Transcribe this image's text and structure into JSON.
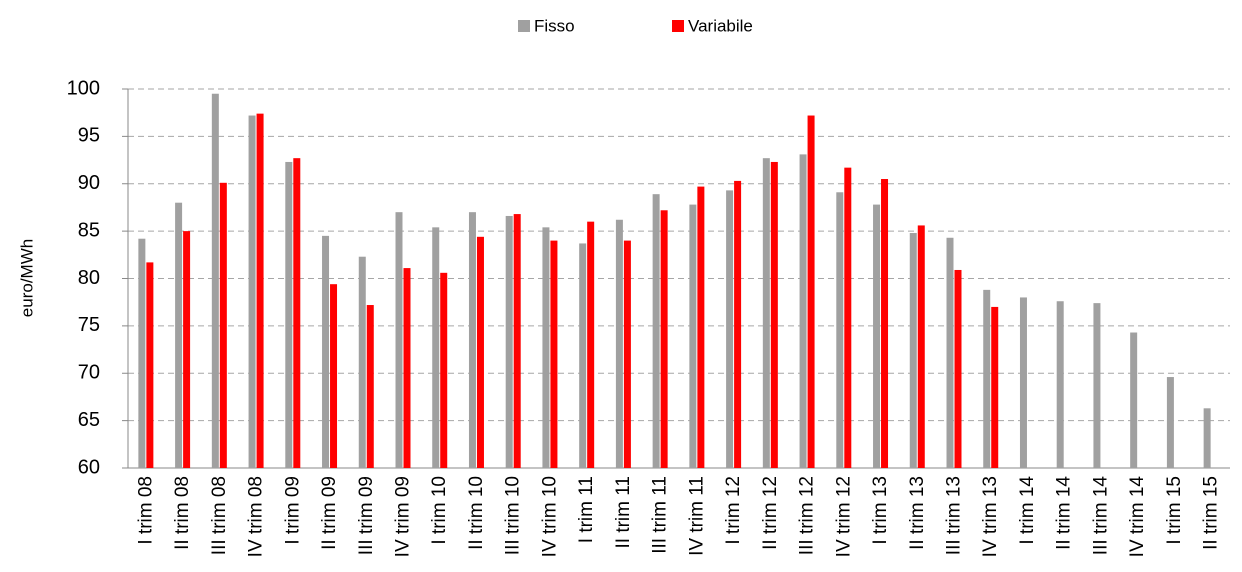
{
  "chart_data": {
    "type": "bar",
    "y_label": "euro/MWh",
    "categories": [
      "I trim 08",
      "II trim 08",
      "III trim 08",
      "IV trim 08",
      "I trim 09",
      "II trim 09",
      "III trim 09",
      "IV trim 09",
      "I trim 10",
      "II trim 10",
      "III trim 10",
      "IV trim 10",
      "I trim 11",
      "II trim 11",
      "III trim 11",
      "IV trim 11",
      "I trim 12",
      "II trim 12",
      "III trim 12",
      "IV trim 12",
      "I trim 13",
      "II trim 13",
      "III trim 13",
      "IV trim 13",
      "I trim 14",
      "II trim 14",
      "III trim 14",
      "IV trim 14",
      "I trim 15",
      "II trim 15"
    ],
    "series": [
      {
        "name": "Fisso",
        "color": "#a0a0a0",
        "values": [
          84.2,
          88.0,
          99.5,
          97.2,
          92.3,
          84.5,
          82.3,
          87.0,
          85.4,
          87.0,
          86.6,
          85.4,
          83.7,
          86.2,
          88.9,
          87.8,
          89.3,
          92.7,
          93.1,
          89.1,
          87.8,
          84.8,
          84.3,
          78.8,
          78.0,
          77.6,
          77.4,
          74.3,
          69.6,
          66.3
        ]
      },
      {
        "name": "Variabile",
        "color": "#ff0000",
        "values": [
          81.7,
          85.0,
          90.1,
          97.4,
          92.7,
          79.4,
          77.2,
          81.1,
          80.6,
          84.4,
          86.8,
          84.0,
          86.0,
          84.0,
          87.2,
          89.7,
          90.3,
          92.3,
          97.2,
          91.7,
          90.5,
          85.6,
          80.9,
          77.0,
          null,
          null,
          null,
          null,
          null,
          null
        ]
      }
    ],
    "ylim": [
      60,
      100
    ],
    "yticks": [
      60,
      65,
      70,
      75,
      80,
      85,
      90,
      95,
      100
    ],
    "grid": true,
    "legend": "top"
  }
}
